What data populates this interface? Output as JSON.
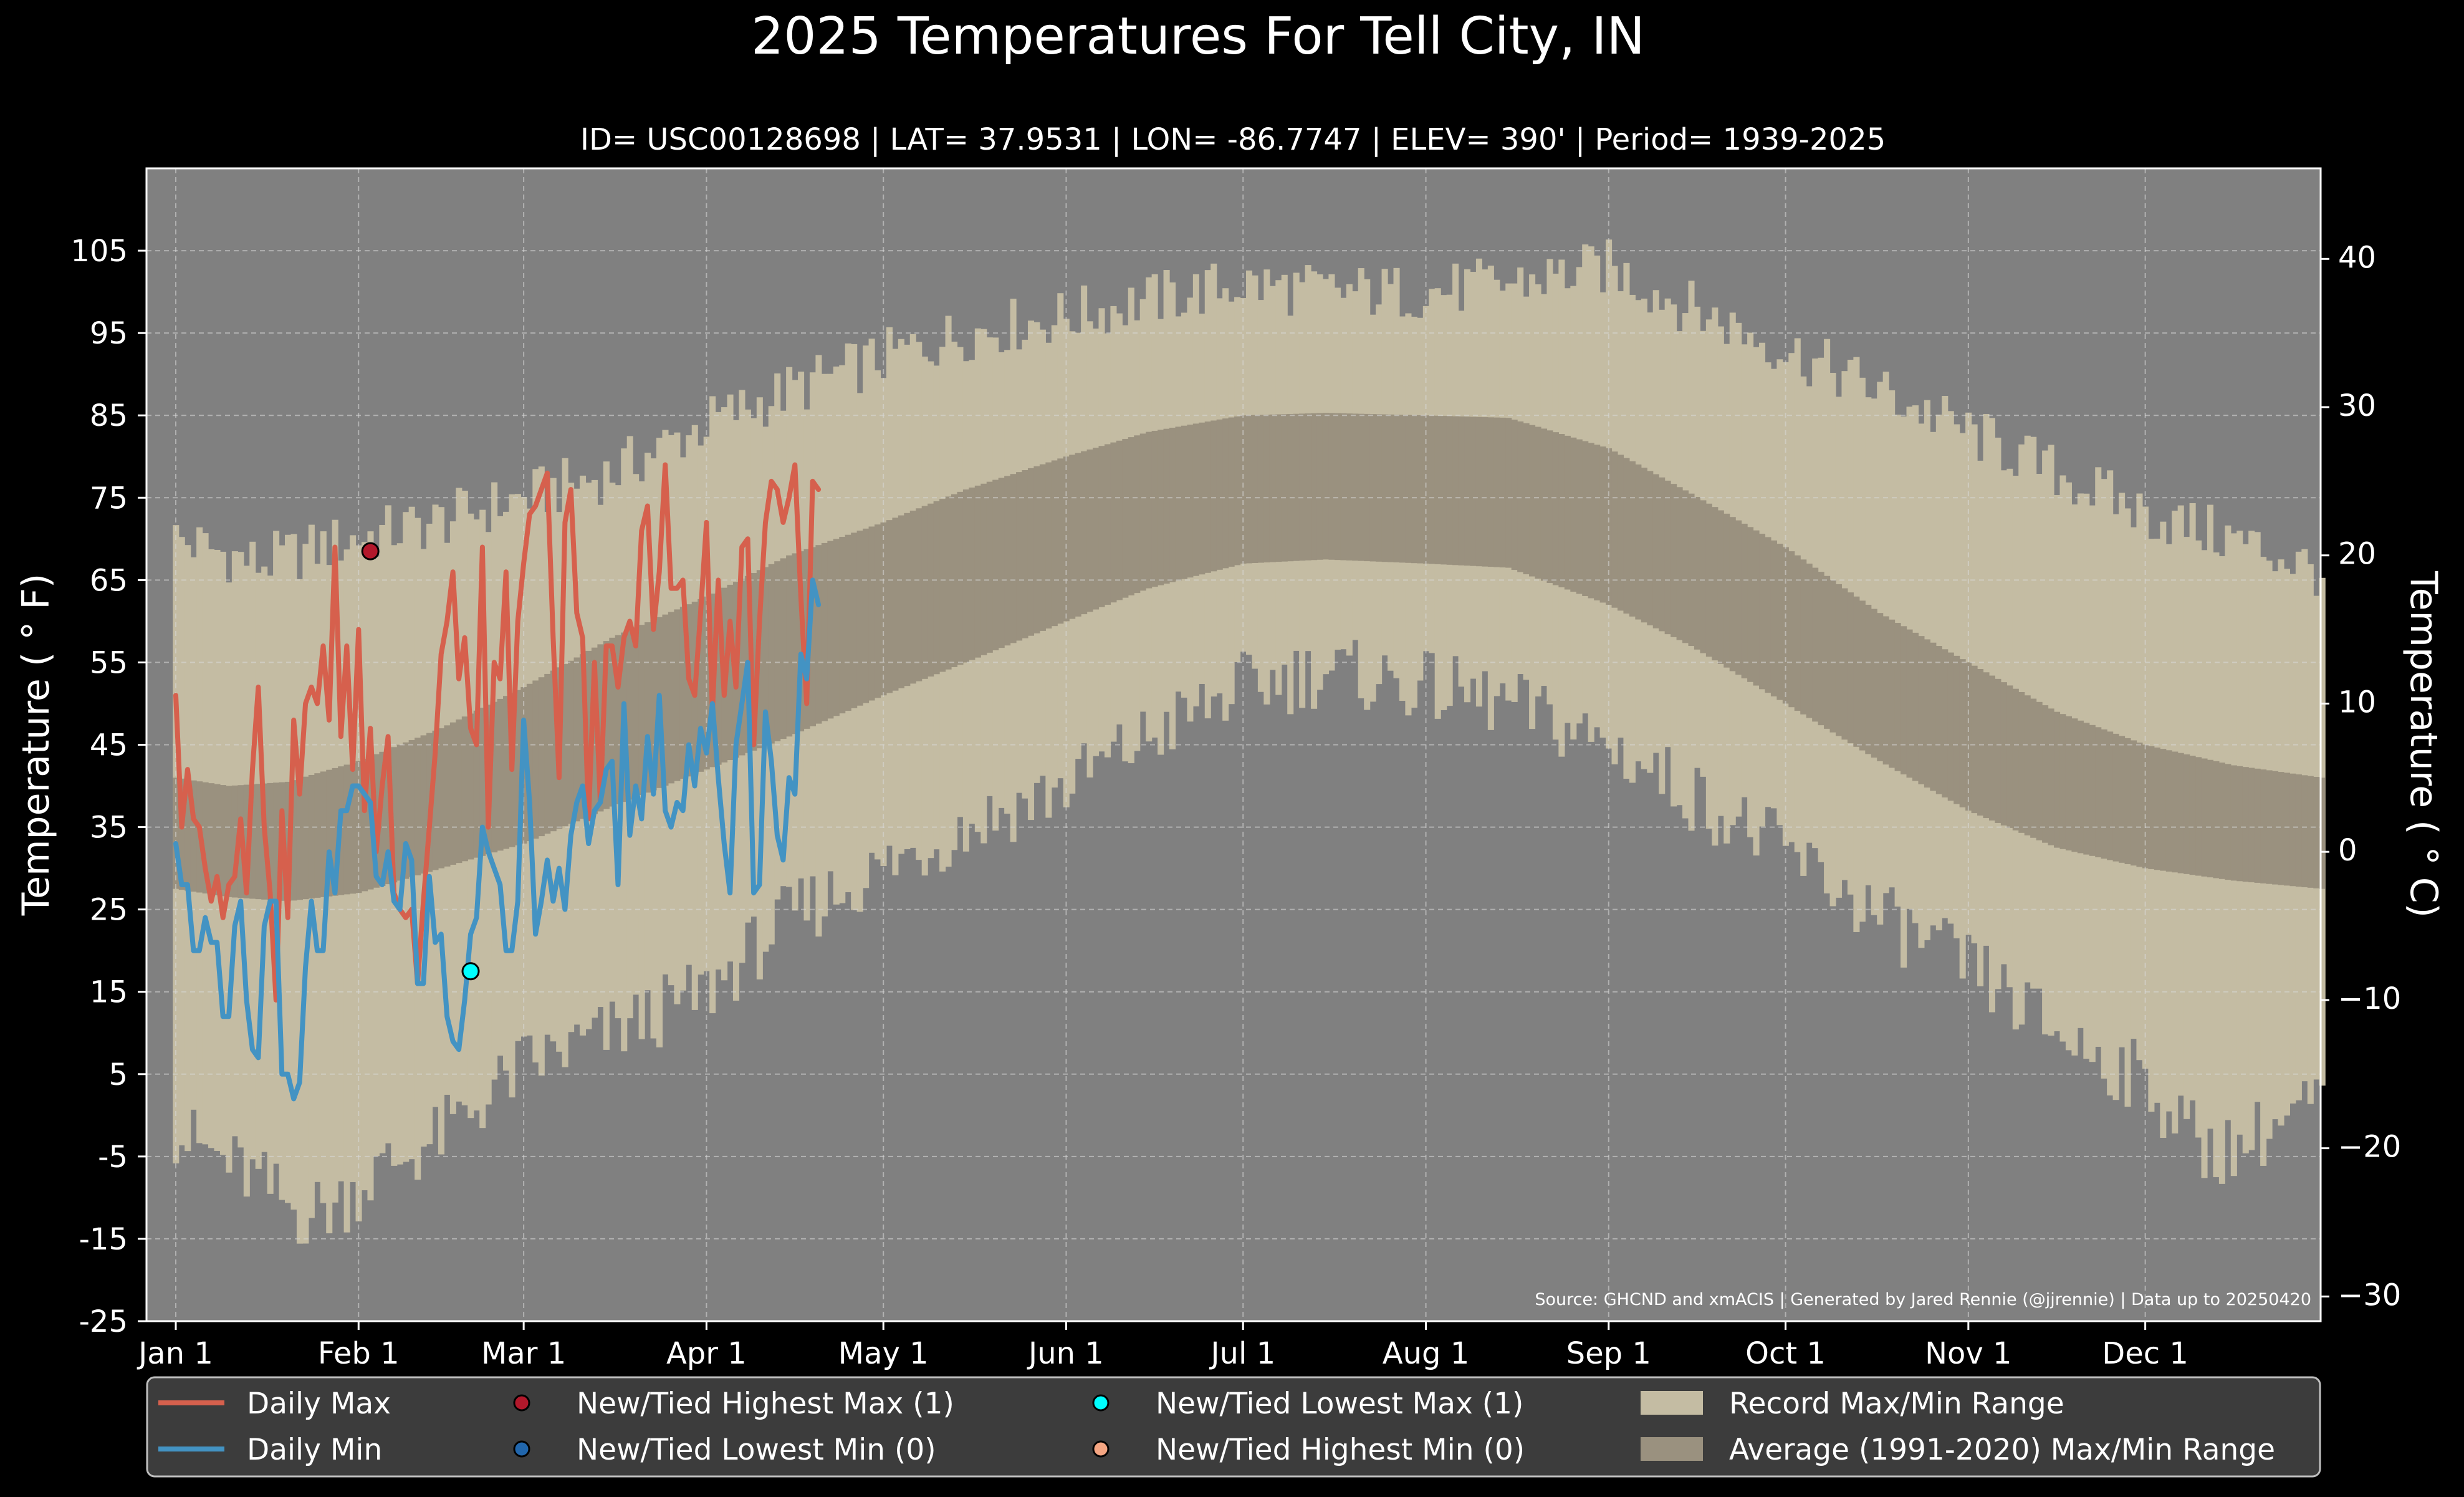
{
  "chart_data": {
    "type": "line",
    "title": "2025 Temperatures For Tell City, IN",
    "subtitle": "ID= USC00128698 | LAT= 37.9531 | LON= -86.7747 | ELEV= 390' | Period= 1939-2025",
    "ylabel_left": "Temperature ($^\\circ$F)",
    "ylabel_left_display": "Temperature ( ° F)",
    "ylabel_right_display": "Temperature ( ° C)",
    "ylim": [
      -25,
      115
    ],
    "yticks_f": [
      105,
      95,
      85,
      75,
      65,
      55,
      45,
      35,
      25,
      15,
      5,
      -5,
      -15,
      -25
    ],
    "ytick_labels_f": [
      "105",
      "95",
      "85",
      "75",
      "65",
      "55",
      "45",
      "35",
      "25",
      "15",
      "5",
      "-5",
      "-15",
      "-25"
    ],
    "yticks_c": [
      40,
      30,
      20,
      10,
      0,
      -10,
      -20,
      -30
    ],
    "ytick_labels_c": [
      "40",
      "30",
      "20",
      "10",
      "0",
      "−10",
      "−20",
      "−30"
    ],
    "x_days_range": [
      1,
      365
    ],
    "xticks": [
      {
        "day": 1,
        "label": "Jan 1"
      },
      {
        "day": 32,
        "label": "Feb 1"
      },
      {
        "day": 60,
        "label": "Mar 1"
      },
      {
        "day": 91,
        "label": "Apr 1"
      },
      {
        "day": 121,
        "label": "May 1"
      },
      {
        "day": 152,
        "label": "Jun 1"
      },
      {
        "day": 182,
        "label": "Jul 1"
      },
      {
        "day": 213,
        "label": "Aug 1"
      },
      {
        "day": 244,
        "label": "Sep 1"
      },
      {
        "day": 274,
        "label": "Oct 1"
      },
      {
        "day": 305,
        "label": "Nov 1"
      },
      {
        "day": 335,
        "label": "Dec 1"
      }
    ],
    "grid": true,
    "legend_placement": "bottom",
    "source_text": "Source: GHCND and xmACIS | Generated by Jared Rennie (@jjrennie) | Data up to 20250420",
    "colors": {
      "background": "#000000",
      "plot_bg": "#808080",
      "record_band": "#c4bca3",
      "normal_band": "#9a917f",
      "daily_max": "#d6604d",
      "daily_min": "#4393c3",
      "highest_max_marker": "#b2182b",
      "lowest_min_marker": "#2166ac",
      "lowest_max_marker": "#00ffff",
      "highest_min_marker": "#f4a582"
    },
    "record_max_anchors": [
      [
        1,
        70
      ],
      [
        15,
        67
      ],
      [
        31,
        70
      ],
      [
        45,
        72
      ],
      [
        60,
        75
      ],
      [
        75,
        78
      ],
      [
        91,
        84
      ],
      [
        105,
        88
      ],
      [
        121,
        92
      ],
      [
        135,
        95
      ],
      [
        152,
        97
      ],
      [
        166,
        99
      ],
      [
        182,
        101
      ],
      [
        196,
        100
      ],
      [
        213,
        100
      ],
      [
        227,
        101
      ],
      [
        244,
        103
      ],
      [
        258,
        98
      ],
      [
        274,
        93
      ],
      [
        290,
        88
      ],
      [
        305,
        83
      ],
      [
        320,
        78
      ],
      [
        335,
        73
      ],
      [
        350,
        70
      ],
      [
        365,
        66
      ]
    ],
    "record_min_anchors": [
      [
        1,
        -2
      ],
      [
        15,
        -8
      ],
      [
        22,
        -12
      ],
      [
        28,
        -11
      ],
      [
        35,
        -7
      ],
      [
        45,
        -3
      ],
      [
        55,
        3
      ],
      [
        60,
        6
      ],
      [
        75,
        10
      ],
      [
        91,
        15
      ],
      [
        105,
        24
      ],
      [
        121,
        30
      ],
      [
        135,
        35
      ],
      [
        152,
        40
      ],
      [
        166,
        46
      ],
      [
        182,
        52
      ],
      [
        196,
        54
      ],
      [
        213,
        52
      ],
      [
        227,
        50
      ],
      [
        244,
        45
      ],
      [
        258,
        39
      ],
      [
        274,
        32
      ],
      [
        290,
        24
      ],
      [
        305,
        18
      ],
      [
        320,
        10
      ],
      [
        335,
        4
      ],
      [
        345,
        -4
      ],
      [
        350,
        -4
      ],
      [
        360,
        0
      ],
      [
        365,
        2
      ]
    ],
    "normal_max_anchors": [
      [
        1,
        41
      ],
      [
        10,
        40
      ],
      [
        20,
        40.5
      ],
      [
        32,
        43
      ],
      [
        46,
        47
      ],
      [
        60,
        52
      ],
      [
        75,
        58
      ],
      [
        91,
        63
      ],
      [
        105,
        68
      ],
      [
        121,
        72
      ],
      [
        135,
        76
      ],
      [
        152,
        80
      ],
      [
        166,
        83
      ],
      [
        182,
        85
      ],
      [
        196,
        85.3
      ],
      [
        213,
        85
      ],
      [
        227,
        84.7
      ],
      [
        244,
        81
      ],
      [
        258,
        75.5
      ],
      [
        274,
        69
      ],
      [
        290,
        61
      ],
      [
        305,
        55
      ],
      [
        320,
        49
      ],
      [
        335,
        45
      ],
      [
        350,
        42.5
      ],
      [
        365,
        41
      ]
    ],
    "normal_min_anchors": [
      [
        1,
        27.5
      ],
      [
        10,
        26.5
      ],
      [
        20,
        26
      ],
      [
        32,
        27
      ],
      [
        46,
        30
      ],
      [
        60,
        33
      ],
      [
        75,
        37.5
      ],
      [
        91,
        42
      ],
      [
        105,
        46
      ],
      [
        121,
        51
      ],
      [
        135,
        55
      ],
      [
        152,
        60
      ],
      [
        166,
        64
      ],
      [
        182,
        67
      ],
      [
        196,
        67.5
      ],
      [
        213,
        67
      ],
      [
        227,
        66.5
      ],
      [
        244,
        62
      ],
      [
        258,
        57
      ],
      [
        274,
        50
      ],
      [
        290,
        43
      ],
      [
        305,
        37
      ],
      [
        320,
        32.5
      ],
      [
        335,
        30
      ],
      [
        350,
        28.5
      ],
      [
        365,
        27.5
      ]
    ],
    "series": [
      {
        "name": "Daily Max",
        "days": [
          1,
          2,
          3,
          4,
          5,
          6,
          7,
          8,
          9,
          10,
          11,
          12,
          13,
          14,
          15,
          16,
          17,
          18,
          19,
          20,
          21,
          22,
          23,
          24,
          25,
          26,
          27,
          28,
          29,
          30,
          31,
          32,
          33,
          34,
          35,
          36,
          37,
          38,
          39,
          40,
          41,
          42,
          43,
          44,
          45,
          46,
          47,
          48,
          49,
          50,
          51,
          52,
          53,
          54,
          55,
          56,
          57,
          58,
          59,
          60,
          61,
          62,
          63,
          64,
          65,
          66,
          67,
          68,
          69,
          70,
          71,
          72,
          73,
          74,
          75,
          76,
          77,
          78,
          79,
          80,
          81,
          82,
          83,
          84,
          85,
          86,
          87,
          88,
          89,
          90,
          91,
          92,
          93,
          94,
          95,
          96,
          97,
          98,
          99,
          100,
          101,
          102,
          103,
          104,
          105,
          106,
          107,
          108,
          109,
          110
        ],
        "values": [
          51,
          35,
          42,
          36,
          35,
          30,
          26,
          29,
          24,
          28,
          29,
          36,
          27,
          42,
          52,
          35,
          27,
          14,
          37,
          24,
          48,
          39,
          50,
          52,
          50,
          57,
          48,
          69,
          46,
          57,
          42,
          59,
          37,
          47,
          32,
          40,
          46,
          27,
          25,
          24,
          25,
          16,
          26,
          35,
          44,
          56,
          60,
          66,
          53,
          58,
          47,
          45,
          69,
          35,
          55,
          53,
          66,
          42,
          60,
          67,
          73,
          74,
          76,
          78,
          58,
          41,
          72,
          76,
          61,
          58,
          36,
          55,
          38,
          57,
          57,
          52,
          58,
          60,
          57,
          71,
          74,
          59,
          66,
          79,
          64,
          64,
          65,
          53,
          51,
          61,
          72,
          49,
          65,
          51,
          60,
          52,
          69,
          70,
          45,
          60,
          72,
          77,
          76,
          72,
          75,
          79,
          63,
          50,
          77,
          76
        ]
      },
      {
        "name": "Daily Min",
        "days": [
          1,
          2,
          3,
          4,
          5,
          6,
          7,
          8,
          9,
          10,
          11,
          12,
          13,
          14,
          15,
          16,
          17,
          18,
          19,
          20,
          21,
          22,
          23,
          24,
          25,
          26,
          27,
          28,
          29,
          30,
          31,
          32,
          33,
          34,
          35,
          36,
          37,
          38,
          39,
          40,
          41,
          42,
          43,
          44,
          45,
          46,
          47,
          48,
          49,
          50,
          51,
          52,
          53,
          54,
          55,
          56,
          57,
          58,
          59,
          60,
          61,
          62,
          63,
          64,
          65,
          66,
          67,
          68,
          69,
          70,
          71,
          72,
          73,
          74,
          75,
          76,
          77,
          78,
          79,
          80,
          81,
          82,
          83,
          84,
          85,
          86,
          87,
          88,
          89,
          90,
          91,
          92,
          93,
          94,
          95,
          96,
          97,
          98,
          99,
          100,
          101,
          102,
          103,
          104,
          105,
          106,
          107,
          108,
          109,
          110
        ],
        "values": [
          33,
          28,
          28,
          20,
          20,
          24,
          21,
          21,
          12,
          12,
          23,
          26,
          14,
          8,
          7,
          23,
          26,
          26,
          5,
          5,
          2,
          4,
          18,
          26,
          20,
          20,
          32,
          27,
          37,
          37,
          40,
          40,
          39,
          38,
          29,
          28,
          32,
          26,
          25,
          33,
          31,
          16,
          16,
          29,
          21,
          22,
          12,
          9,
          8,
          14,
          22,
          24,
          35,
          32,
          30,
          28,
          20,
          20,
          26,
          48,
          38,
          22,
          26,
          31,
          26,
          30,
          25,
          34,
          38,
          40,
          33,
          37,
          38,
          42,
          43,
          28,
          50,
          34,
          40,
          36,
          46,
          39,
          51,
          37,
          35,
          38,
          37,
          45,
          40,
          47,
          44,
          50,
          41,
          33,
          27,
          45,
          50,
          55,
          27,
          28,
          49,
          43,
          34,
          31,
          41,
          39,
          56,
          53,
          65,
          62
        ]
      }
    ],
    "markers": [
      {
        "type": "New/Tied Highest Max",
        "day": 34,
        "value": 68.5
      },
      {
        "type": "New/Tied Lowest Max",
        "day": 51,
        "value": 17.5
      }
    ],
    "legend": [
      {
        "label": "Daily Max",
        "kind": "line",
        "color_key": "daily_max"
      },
      {
        "label": "Daily Min",
        "kind": "line",
        "color_key": "daily_min"
      },
      {
        "label": "New/Tied Highest Max (1)",
        "kind": "dot",
        "color_key": "highest_max_marker"
      },
      {
        "label": "New/Tied Lowest Min (0)",
        "kind": "dot",
        "color_key": "lowest_min_marker"
      },
      {
        "label": "New/Tied Lowest Max (1)",
        "kind": "dot",
        "color_key": "lowest_max_marker"
      },
      {
        "label": "New/Tied Highest Min (0)",
        "kind": "dot",
        "color_key": "highest_min_marker"
      },
      {
        "label": "Record Max/Min Range",
        "kind": "patch",
        "color_key": "record_band"
      },
      {
        "label": "Average (1991-2020) Max/Min Range",
        "kind": "patch",
        "color_key": "normal_band"
      }
    ]
  }
}
